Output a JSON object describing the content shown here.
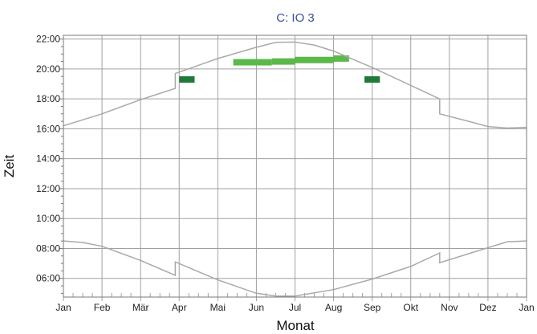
{
  "chart_data": {
    "type": "line",
    "title": "C: IO 3",
    "xlabel": "Monat",
    "ylabel": "Zeit",
    "x_tick_labels": [
      "Jan",
      "Feb",
      "Mär",
      "Apr",
      "Mai",
      "Jun",
      "Jul",
      "Aug",
      "Sep",
      "Okt",
      "Nov",
      "Dez",
      "Jan"
    ],
    "y_tick_labels": [
      "06:00",
      "08:00",
      "10:00",
      "12:00",
      "14:00",
      "16:00",
      "18:00",
      "20:00",
      "22:00"
    ],
    "xlim_months": [
      0,
      12
    ],
    "ylim_hours": [
      4.75,
      22.25
    ],
    "grid": true,
    "colors": {
      "curve": "#a9a9a9",
      "grid": "#a0a0a0",
      "frame": "#7a7a7a",
      "highlight_light": "#5cb84a",
      "highlight_dark": "#1e7a3c",
      "title": "#3a4fa0"
    },
    "series": [
      {
        "kind": "sunset",
        "points": [
          [
            0.0,
            16.2
          ],
          [
            1.0,
            17.0
          ],
          [
            2.0,
            17.95
          ],
          [
            2.9,
            18.7
          ],
          [
            2.9,
            19.7
          ],
          [
            4.0,
            20.7
          ],
          [
            5.0,
            21.45
          ],
          [
            5.5,
            21.78
          ],
          [
            6.0,
            21.8
          ],
          [
            6.5,
            21.6
          ],
          [
            7.0,
            21.2
          ],
          [
            8.0,
            20.1
          ],
          [
            9.0,
            18.9
          ],
          [
            9.75,
            18.0
          ],
          [
            9.75,
            17.0
          ],
          [
            10.5,
            16.5
          ],
          [
            11.0,
            16.15
          ],
          [
            11.5,
            16.05
          ],
          [
            12.0,
            16.1
          ]
        ]
      },
      {
        "kind": "sunrise",
        "points": [
          [
            0.0,
            8.5
          ],
          [
            0.5,
            8.4
          ],
          [
            1.0,
            8.15
          ],
          [
            2.0,
            7.2
          ],
          [
            2.9,
            6.2
          ],
          [
            2.9,
            7.1
          ],
          [
            4.0,
            5.9
          ],
          [
            5.0,
            5.0
          ],
          [
            5.5,
            4.82
          ],
          [
            6.0,
            4.82
          ],
          [
            7.0,
            5.25
          ],
          [
            8.0,
            5.95
          ],
          [
            9.0,
            6.8
          ],
          [
            9.75,
            7.7
          ],
          [
            9.75,
            7.05
          ],
          [
            11.0,
            8.05
          ],
          [
            11.5,
            8.45
          ],
          [
            12.0,
            8.5
          ]
        ]
      }
    ],
    "highlights": [
      {
        "from_month": 3.0,
        "to_month": 3.4,
        "y_center": 19.3,
        "tone": "dark"
      },
      {
        "from_month": 4.4,
        "to_month": 5.4,
        "y_center": 20.45,
        "tone": "light"
      },
      {
        "from_month": 5.4,
        "to_month": 6.0,
        "y_center": 20.5,
        "tone": "light"
      },
      {
        "from_month": 6.0,
        "to_month": 7.0,
        "y_center": 20.6,
        "tone": "light"
      },
      {
        "from_month": 7.0,
        "to_month": 7.4,
        "y_center": 20.7,
        "tone": "light"
      },
      {
        "from_month": 7.8,
        "to_month": 8.2,
        "y_center": 19.3,
        "tone": "dark"
      }
    ]
  }
}
